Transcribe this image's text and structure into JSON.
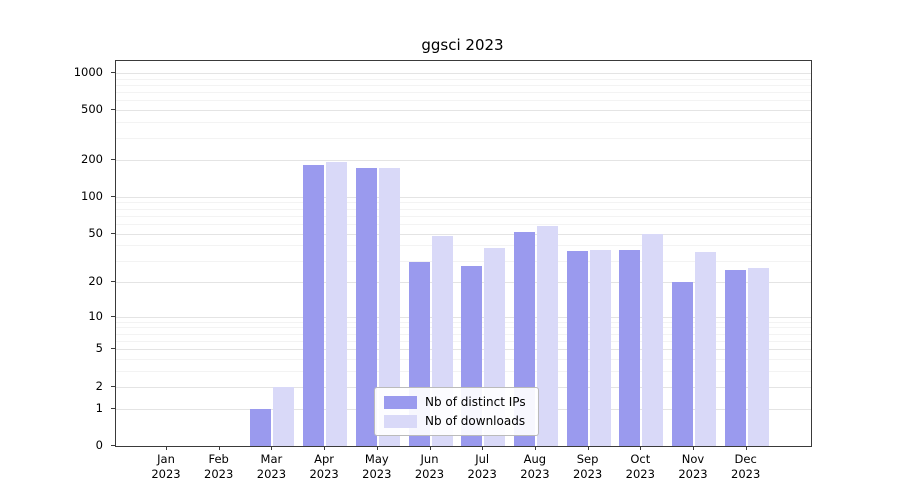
{
  "title": "ggsci 2023",
  "chart_data": {
    "type": "bar",
    "title": "ggsci 2023",
    "categories": [
      "Jan 2023",
      "Feb 2023",
      "Mar 2023",
      "Apr 2023",
      "May 2023",
      "Jun 2023",
      "Jul 2023",
      "Aug 2023",
      "Sep 2023",
      "Oct 2023",
      "Nov 2023",
      "Dec 2023"
    ],
    "series": [
      {
        "name": "Nb of distinct IPs",
        "color": "#9a9aee",
        "values": [
          0,
          0,
          1,
          180,
          172,
          29,
          27,
          52,
          36,
          37,
          20,
          25
        ]
      },
      {
        "name": "Nb of downloads",
        "color": "#d9d9f8",
        "values": [
          0,
          0,
          2,
          192,
          170,
          48,
          38,
          58,
          37,
          50,
          35,
          26
        ]
      }
    ],
    "y_ticks": [
      0,
      1,
      2,
      5,
      10,
      20,
      50,
      100,
      200,
      500,
      1000
    ],
    "y_scale": "log1p",
    "xlabel": "",
    "ylabel": "",
    "grid": true,
    "legend_position": "lower center"
  }
}
